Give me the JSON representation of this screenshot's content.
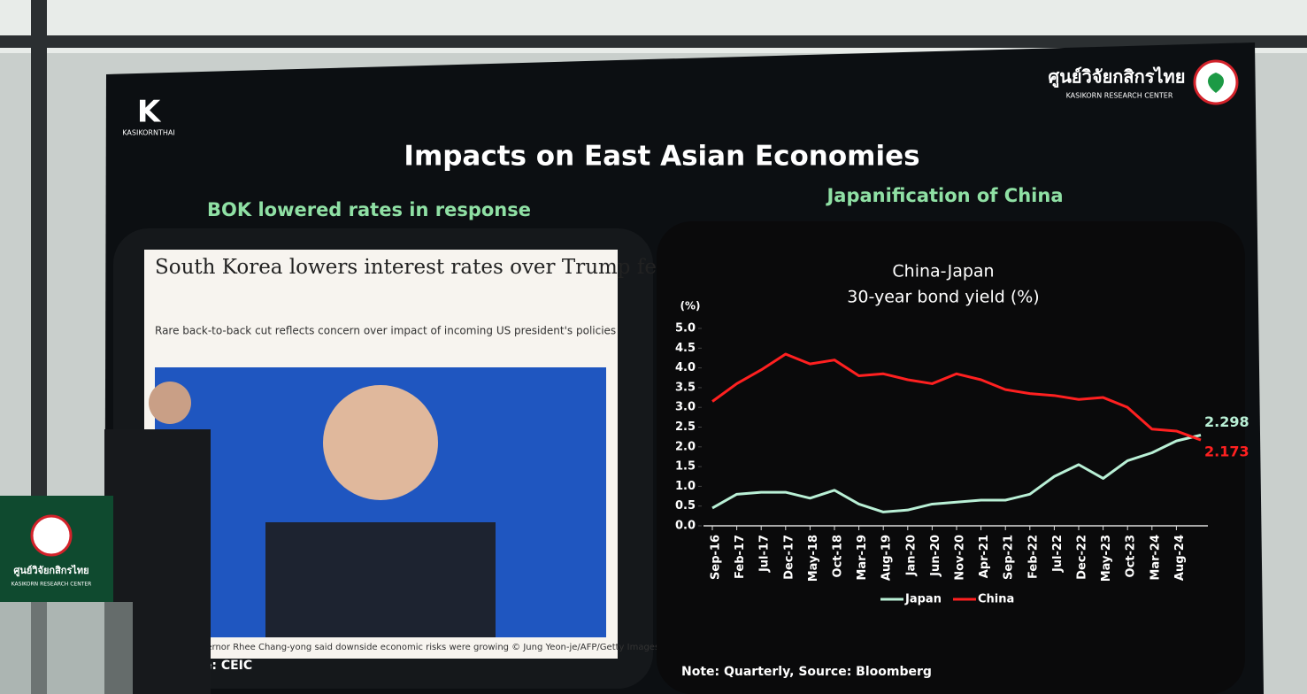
{
  "logo": {
    "brand": "KASIKORNTHAI",
    "research_center_thai": "ศูนย์วิจัยกสิกรไทย",
    "research_center": "KASIKORN RESEARCH CENTER"
  },
  "title": "Impacts on East Asian Economies",
  "left": {
    "heading": "BOK lowered rates in response",
    "article_title": "South Korea lowers interest rates over Trump fears",
    "article_subtitle": "Rare back-to-back cut reflects concern over impact of incoming US president's policies",
    "photo_caption": "governor Rhee Chang-yong said downside economic risks were growing © Jung Yeon-je/AFP/Getty Images",
    "source": "Source: CEIC"
  },
  "right": {
    "heading": "Japanification of China",
    "note": "Note: Quarterly, Source: Bloomberg"
  },
  "chart_data": {
    "type": "line",
    "title": "China-Japan",
    "subtitle": "30-year bond yield (%)",
    "y_unit": "(%)",
    "categories": [
      "Sep-16",
      "Feb-17",
      "Jul-17",
      "Dec-17",
      "May-18",
      "Oct-18",
      "Mar-19",
      "Aug-19",
      "Jan-20",
      "Jun-20",
      "Nov-20",
      "Apr-21",
      "Sep-21",
      "Feb-22",
      "Jul-22",
      "Dec-22",
      "May-23",
      "Oct-23",
      "Mar-24",
      "Aug-24",
      null
    ],
    "series": [
      {
        "name": "Japan",
        "color": "#b9f0d6",
        "values": [
          0.45,
          0.8,
          0.85,
          0.85,
          0.7,
          0.9,
          0.55,
          0.35,
          0.4,
          0.55,
          0.6,
          0.65,
          0.65,
          0.8,
          1.25,
          1.55,
          1.2,
          1.65,
          1.85,
          2.15,
          2.298
        ],
        "value_labels": [
          null,
          null,
          null,
          null,
          null,
          null,
          null,
          null,
          null,
          null,
          null,
          null,
          null,
          null,
          null,
          null,
          null,
          null,
          null,
          null,
          "2.298"
        ]
      },
      {
        "name": "China",
        "color": "#ff2020",
        "values": [
          3.15,
          3.6,
          3.95,
          4.35,
          4.1,
          4.2,
          3.8,
          3.85,
          3.7,
          3.6,
          3.85,
          3.7,
          3.45,
          3.35,
          3.3,
          3.2,
          3.25,
          3.0,
          2.45,
          2.4,
          2.173
        ],
        "value_labels": [
          null,
          null,
          null,
          null,
          null,
          null,
          null,
          null,
          null,
          null,
          null,
          null,
          null,
          null,
          null,
          null,
          null,
          null,
          null,
          null,
          "2.173"
        ]
      }
    ],
    "ylim": [
      0,
      5
    ],
    "yticks": [
      {
        "value": 0,
        "label": "0.0"
      },
      {
        "value": 0.5,
        "label": "0.5"
      },
      {
        "value": 1,
        "label": "1.0"
      },
      {
        "value": 1.5,
        "label": "1.5"
      },
      {
        "value": 2,
        "label": "2.0"
      },
      {
        "value": 2.5,
        "label": "2.5"
      },
      {
        "value": 3,
        "label": "3.0"
      },
      {
        "value": 3.5,
        "label": "3.5"
      },
      {
        "value": 4,
        "label": "4.0"
      },
      {
        "value": 4.5,
        "label": "4.5"
      },
      {
        "value": 5,
        "label": "5.0"
      }
    ],
    "grid": false,
    "legend": "bottom"
  }
}
